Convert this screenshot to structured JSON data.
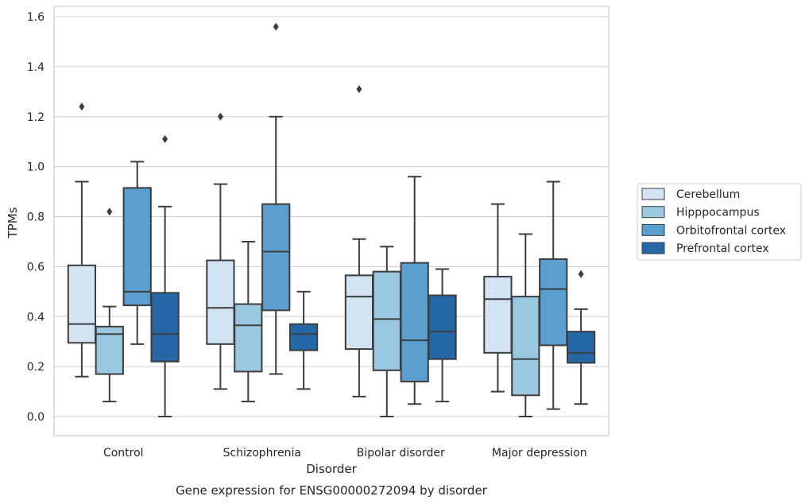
{
  "chart_data": {
    "type": "box",
    "title": "",
    "xlabel": "Disorder",
    "ylabel": "TPMs",
    "caption": "Gene expression for ENSG00000272094 by disorder",
    "ylim": [
      -0.075,
      1.645
    ],
    "yticks": [
      "0.0",
      "0.2",
      "0.4",
      "0.6",
      "0.8",
      "1.0",
      "1.2",
      "1.4",
      "1.6"
    ],
    "grid": true,
    "legend_position": "right",
    "categories": [
      "Control",
      "Schizophrenia",
      "Bipolar disorder",
      "Major depression"
    ],
    "series": [
      {
        "name": "Cerebellum",
        "color": "#d2e3f3",
        "boxes": [
          {
            "whisker_low": 0.16,
            "q1": 0.295,
            "median": 0.37,
            "q3": 0.605,
            "whisker_high": 0.94,
            "outliers": [
              1.24
            ]
          },
          {
            "whisker_low": 0.11,
            "q1": 0.29,
            "median": 0.435,
            "q3": 0.625,
            "whisker_high": 0.93,
            "outliers": [
              1.2
            ]
          },
          {
            "whisker_low": 0.08,
            "q1": 0.27,
            "median": 0.48,
            "q3": 0.565,
            "whisker_high": 0.71,
            "outliers": [
              1.31
            ]
          },
          {
            "whisker_low": 0.1,
            "q1": 0.255,
            "median": 0.47,
            "q3": 0.56,
            "whisker_high": 0.85,
            "outliers": []
          }
        ]
      },
      {
        "name": "Hipppocampus",
        "color": "#9ac8e0",
        "boxes": [
          {
            "whisker_low": 0.06,
            "q1": 0.17,
            "median": 0.33,
            "q3": 0.36,
            "whisker_high": 0.44,
            "outliers": [
              0.82
            ]
          },
          {
            "whisker_low": 0.06,
            "q1": 0.18,
            "median": 0.365,
            "q3": 0.45,
            "whisker_high": 0.7,
            "outliers": []
          },
          {
            "whisker_low": 0.0,
            "q1": 0.185,
            "median": 0.39,
            "q3": 0.58,
            "whisker_high": 0.68,
            "outliers": []
          },
          {
            "whisker_low": 0.0,
            "q1": 0.085,
            "median": 0.23,
            "q3": 0.48,
            "whisker_high": 0.73,
            "outliers": []
          }
        ]
      },
      {
        "name": "Orbitofrontal cortex",
        "color": "#5a9fcf",
        "boxes": [
          {
            "whisker_low": 0.29,
            "q1": 0.445,
            "median": 0.5,
            "q3": 0.915,
            "whisker_high": 1.02,
            "outliers": []
          },
          {
            "whisker_low": 0.17,
            "q1": 0.425,
            "median": 0.66,
            "q3": 0.85,
            "whisker_high": 1.2,
            "outliers": [
              1.56
            ]
          },
          {
            "whisker_low": 0.05,
            "q1": 0.14,
            "median": 0.305,
            "q3": 0.615,
            "whisker_high": 0.96,
            "outliers": []
          },
          {
            "whisker_low": 0.03,
            "q1": 0.285,
            "median": 0.51,
            "q3": 0.63,
            "whisker_high": 0.94,
            "outliers": []
          }
        ]
      },
      {
        "name": "Prefrontal cortex",
        "color": "#2468a8",
        "boxes": [
          {
            "whisker_low": 0.0,
            "q1": 0.22,
            "median": 0.33,
            "q3": 0.495,
            "whisker_high": 0.84,
            "outliers": [
              1.11
            ]
          },
          {
            "whisker_low": 0.11,
            "q1": 0.265,
            "median": 0.33,
            "q3": 0.37,
            "whisker_high": 0.5,
            "outliers": []
          },
          {
            "whisker_low": 0.06,
            "q1": 0.23,
            "median": 0.34,
            "q3": 0.485,
            "whisker_high": 0.59,
            "outliers": []
          },
          {
            "whisker_low": 0.05,
            "q1": 0.215,
            "median": 0.255,
            "q3": 0.34,
            "whisker_high": 0.43,
            "outliers": [
              0.57
            ]
          }
        ]
      }
    ]
  }
}
